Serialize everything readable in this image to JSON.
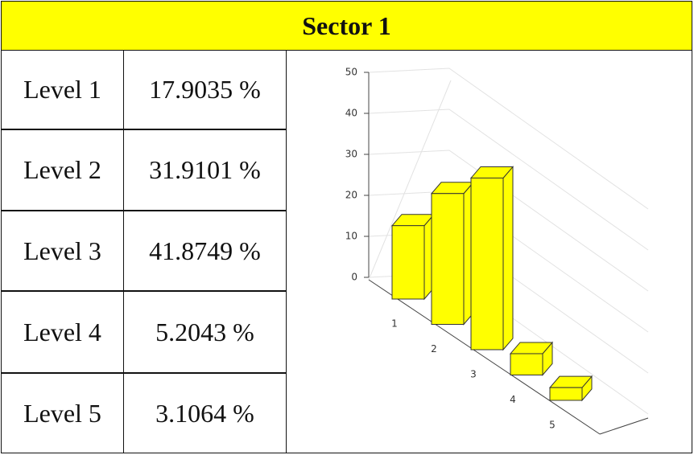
{
  "header": {
    "title": "Sector 1"
  },
  "chart_data": {
    "type": "bar3d",
    "row_labels": [
      "Level 1",
      "Level 2",
      "Level 3",
      "Level 4",
      "Level 5"
    ],
    "categories": [
      "1",
      "2",
      "3",
      "4",
      "5"
    ],
    "values": [
      17.9035,
      31.9101,
      41.8749,
      5.2043,
      3.1064
    ],
    "value_labels": [
      "17.9035 %",
      "31.9101 %",
      "41.8749 %",
      "5.2043 %",
      "3.1064 %"
    ],
    "color": "#ffff00",
    "ylim": [
      0,
      50
    ],
    "yticks": [
      0,
      10,
      20,
      30,
      40,
      50
    ],
    "grid": true
  }
}
